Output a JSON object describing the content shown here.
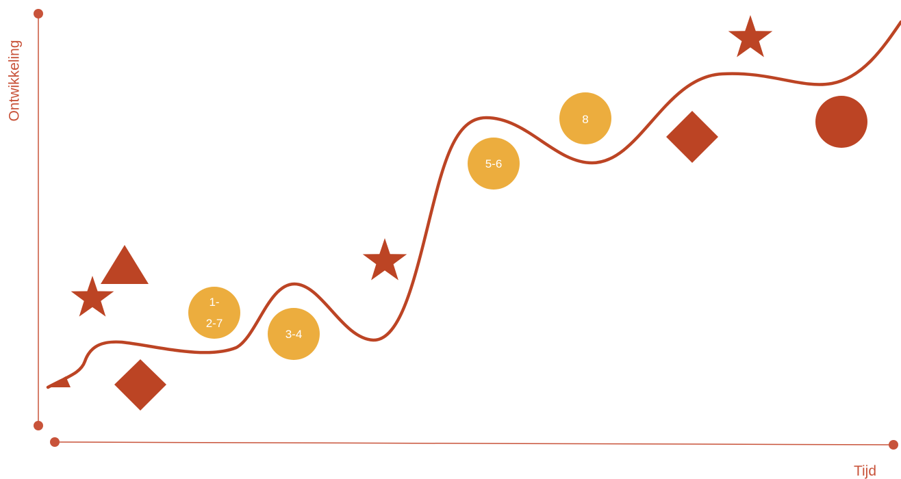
{
  "axes": {
    "y_label": "Ontwikkeling",
    "x_label": "Tijd"
  },
  "colors": {
    "primary": "#bc4424",
    "accent": "#ecad3e",
    "axis": "#c8533a",
    "text_on_accent": "#ffffff"
  },
  "markers": [
    {
      "name": "star-icon",
      "shape": "star"
    },
    {
      "name": "triangle-icon",
      "shape": "triangle"
    },
    {
      "name": "diamond-icon",
      "shape": "diamond"
    },
    {
      "name": "star-icon",
      "shape": "star"
    },
    {
      "name": "star-icon",
      "shape": "star"
    },
    {
      "name": "diamond-icon",
      "shape": "diamond"
    },
    {
      "name": "circle-icon",
      "shape": "circle"
    }
  ],
  "steps": [
    {
      "lines": [
        "1-",
        "2-7"
      ]
    },
    {
      "lines": [
        "3-4"
      ]
    },
    {
      "lines": [
        "5-6"
      ]
    },
    {
      "lines": [
        "8"
      ]
    }
  ]
}
